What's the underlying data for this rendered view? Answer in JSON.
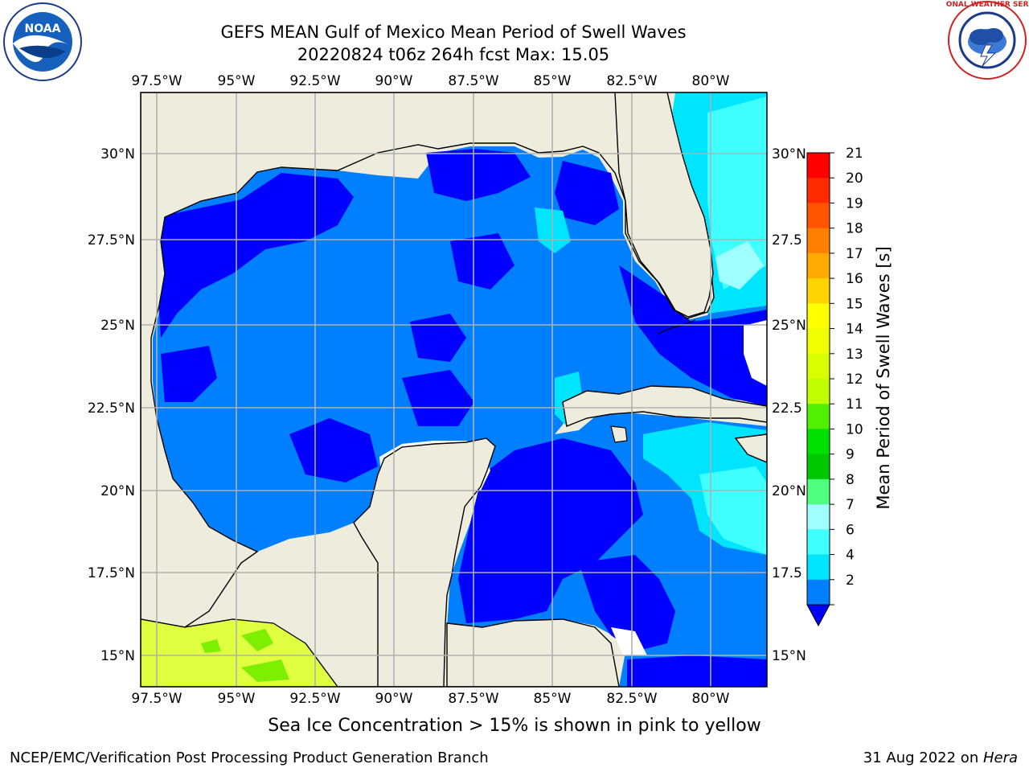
{
  "header": {
    "title_line1": "GEFS MEAN Gulf of Mexico Mean Period of Swell Waves",
    "title_line2": "20220824 t06z 264h fcst   Max: 15.05"
  },
  "map": {
    "lon_ticks": [
      "97.5°W",
      "95°W",
      "92.5°W",
      "90°W",
      "87.5°W",
      "85°W",
      "82.5°W",
      "80°W"
    ],
    "lat_ticks_left": [
      "30°N",
      "27.5°N",
      "25°N",
      "22.5°N",
      "20°N",
      "17.5°N",
      "15°N"
    ],
    "lat_ticks_right": [
      "30°N",
      "27.5",
      "25°N",
      "22.5",
      "20°N",
      "17.5",
      "15°N"
    ],
    "land_color": "#eeecdc",
    "colors": {
      "band_2_4": "#0080ff",
      "below_2": "#0000ff",
      "band_4_6": "#00e5ff",
      "band_6_8": "#40ffff",
      "band_8_9": "#a0ffff",
      "band_13_15": "#c8ff00"
    }
  },
  "colorbar": {
    "label": "Mean Period of Swell Waves [s]",
    "ticks": [
      "21",
      "20",
      "19",
      "18",
      "17",
      "16",
      "15",
      "14",
      "13",
      "12",
      "11",
      "10",
      "9",
      "8",
      "7",
      "6",
      "4",
      "2"
    ],
    "colors": [
      "#ff0000",
      "#ff2a00",
      "#ff5500",
      "#ff8000",
      "#ffaa00",
      "#ffd500",
      "#ffff00",
      "#f0ff00",
      "#d8ff00",
      "#c0ff00",
      "#50f000",
      "#00e000",
      "#00c800",
      "#50ff80",
      "#a0ffff",
      "#40ffff",
      "#00e5ff",
      "#0080ff"
    ],
    "under_color": "#0000ff"
  },
  "note": "Sea Ice Concentration > 15% is shown in pink to yellow",
  "footer": {
    "left": "NCEP/EMC/Verification Post Processing Product Generation Branch",
    "date": "31 Aug 2022 on ",
    "machine": "Hera"
  },
  "logos": {
    "noaa_text": "NOAA",
    "nws_text": "NATIONAL WEATHER SERVICE"
  }
}
